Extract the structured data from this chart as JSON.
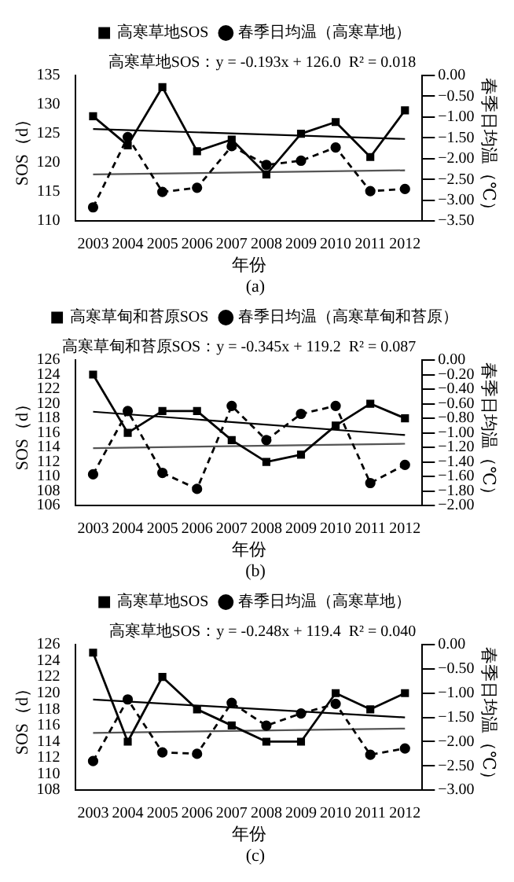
{
  "chart_data": [
    {
      "type": "line",
      "categories": [
        "2003",
        "2004",
        "2005",
        "2006",
        "2007",
        "2008",
        "2009",
        "2010",
        "2011",
        "2012"
      ],
      "xlabel": "年份",
      "ylabel": "SOS（d）",
      "y2label": "春季日均温（℃）",
      "subtitle": "(a)",
      "annotations": [
        "高寒草地SOS：y = -0.193x + 126.0  R² = 0.018"
      ],
      "legend": "top",
      "grid": false,
      "ylim": [
        110,
        135
      ],
      "yticks": [
        110,
        115,
        120,
        125,
        130,
        135
      ],
      "y2lim": [
        -3.5,
        0
      ],
      "y2ticks": [
        {
          "value": -3.5,
          "label": "−3.50"
        },
        {
          "value": -3,
          "label": "−3.00"
        },
        {
          "value": -2.5,
          "label": "−2.50"
        },
        {
          "value": -2,
          "label": "−2.00"
        },
        {
          "value": -1.5,
          "label": "−1.50"
        },
        {
          "value": -1,
          "label": "−1.00"
        },
        {
          "value": -0.5,
          "label": "−0.50"
        },
        {
          "value": 0,
          "label": "0.00"
        }
      ],
      "series": [
        {
          "name": "高寒草地SOS",
          "color": "#000000",
          "marker": "square",
          "line_style": "solid",
          "values": [
            128,
            123,
            133,
            122,
            124,
            118,
            125,
            127,
            121,
            129
          ]
        },
        {
          "name": "春季日均温（高寒草地）",
          "color": "#000000",
          "marker": "circle",
          "line_style": "dashed",
          "axis": "y2",
          "values": [
            -3.17,
            -1.48,
            -2.8,
            -2.7,
            -1.7,
            -2.15,
            -2.05,
            -1.73,
            -2.78,
            -2.73
          ]
        },
        {
          "color": "#000000",
          "marker": "none",
          "line_style": "solid",
          "values": [
            125.8,
            null,
            null,
            null,
            null,
            null,
            null,
            null,
            null,
            124.1
          ]
        },
        {
          "color": "#555555",
          "marker": "none",
          "line_style": "solid",
          "axis": "y2",
          "values": [
            -2.38,
            null,
            null,
            null,
            null,
            null,
            null,
            null,
            null,
            -2.28
          ]
        }
      ]
    },
    {
      "type": "line",
      "categories": [
        "2003",
        "2004",
        "2005",
        "2006",
        "2007",
        "2008",
        "2009",
        "2010",
        "2011",
        "2012"
      ],
      "xlabel": "年份",
      "ylabel": "SOS（d）",
      "y2label": "春季日均温（℃）",
      "subtitle": "(b)",
      "annotations": [
        "高寒草甸和苔原SOS：y = -0.345x + 119.2  R² = 0.087"
      ],
      "legend": "top",
      "grid": false,
      "ylim": [
        106,
        126
      ],
      "yticks": [
        106,
        108,
        110,
        112,
        114,
        116,
        118,
        120,
        122,
        124,
        126
      ],
      "y2lim": [
        -2,
        0
      ],
      "y2ticks": [
        {
          "value": -2,
          "label": "−2.00"
        },
        {
          "value": -1.8,
          "label": "−1.80"
        },
        {
          "value": -1.6,
          "label": "−1.60"
        },
        {
          "value": -1.4,
          "label": "−1.40"
        },
        {
          "value": -1.2,
          "label": "−1.20"
        },
        {
          "value": -1,
          "label": "−1.00"
        },
        {
          "value": -0.8,
          "label": "−0.80"
        },
        {
          "value": -0.6,
          "label": "−0.60"
        },
        {
          "value": -0.4,
          "label": "−0.40"
        },
        {
          "value": -0.2,
          "label": "−0.20"
        },
        {
          "value": 0,
          "label": "0.00"
        }
      ],
      "series": [
        {
          "name": "高寒草甸和苔原SOS",
          "color": "#000000",
          "marker": "square",
          "line_style": "solid",
          "values": [
            124,
            116,
            119,
            119,
            115,
            112,
            113,
            117,
            120,
            118
          ]
        },
        {
          "name": "春季日均温（高寒草甸和苔原）",
          "color": "#000000",
          "marker": "circle",
          "line_style": "dashed",
          "axis": "y2",
          "values": [
            -1.57,
            -0.7,
            -1.55,
            -1.77,
            -0.63,
            -1.1,
            -0.74,
            -0.63,
            -1.69,
            -1.44
          ]
        },
        {
          "color": "#000000",
          "marker": "none",
          "line_style": "solid",
          "values": [
            118.9,
            null,
            null,
            null,
            null,
            null,
            null,
            null,
            null,
            115.7
          ]
        },
        {
          "color": "#555555",
          "marker": "none",
          "line_style": "solid",
          "axis": "y2",
          "values": [
            -1.21,
            null,
            null,
            null,
            null,
            null,
            null,
            null,
            null,
            -1.15
          ]
        }
      ]
    },
    {
      "type": "line",
      "categories": [
        "2003",
        "2004",
        "2005",
        "2006",
        "2007",
        "2008",
        "2009",
        "2010",
        "2011",
        "2012"
      ],
      "xlabel": "年份",
      "ylabel": "SOS（d）",
      "y2label": "春季日均温（℃）",
      "subtitle": "(c)",
      "annotations": [
        "高寒草地SOS：y = -0.248x + 119.4  R² = 0.040"
      ],
      "legend": "top",
      "grid": false,
      "ylim": [
        108,
        126
      ],
      "yticks": [
        108,
        110,
        112,
        114,
        116,
        118,
        120,
        122,
        124,
        126
      ],
      "y2lim": [
        -3,
        0
      ],
      "y2ticks": [
        {
          "value": -3,
          "label": "−3.00"
        },
        {
          "value": -2.5,
          "label": "−2.50"
        },
        {
          "value": -2,
          "label": "−2.00"
        },
        {
          "value": -1.5,
          "label": "−1.50"
        },
        {
          "value": -1,
          "label": "−1.00"
        },
        {
          "value": -0.5,
          "label": "−0.50"
        },
        {
          "value": 0,
          "label": "0.00"
        }
      ],
      "series": [
        {
          "name": "高寒草地SOS",
          "color": "#000000",
          "marker": "square",
          "line_style": "solid",
          "values": [
            125,
            114,
            122,
            118,
            116,
            114,
            114,
            120,
            118,
            120
          ]
        },
        {
          "name": "春季日均温（高寒草地）",
          "color": "#000000",
          "marker": "circle",
          "line_style": "dashed",
          "axis": "y2",
          "values": [
            -2.4,
            -1.13,
            -2.22,
            -2.25,
            -1.2,
            -1.67,
            -1.42,
            -1.22,
            -2.27,
            -2.14
          ]
        },
        {
          "color": "#000000",
          "marker": "none",
          "line_style": "solid",
          "values": [
            119.2,
            null,
            null,
            null,
            null,
            null,
            null,
            null,
            null,
            117.0
          ]
        },
        {
          "color": "#555555",
          "marker": "none",
          "line_style": "solid",
          "axis": "y2",
          "values": [
            -1.82,
            null,
            null,
            null,
            null,
            null,
            null,
            null,
            null,
            -1.73
          ]
        }
      ]
    }
  ]
}
